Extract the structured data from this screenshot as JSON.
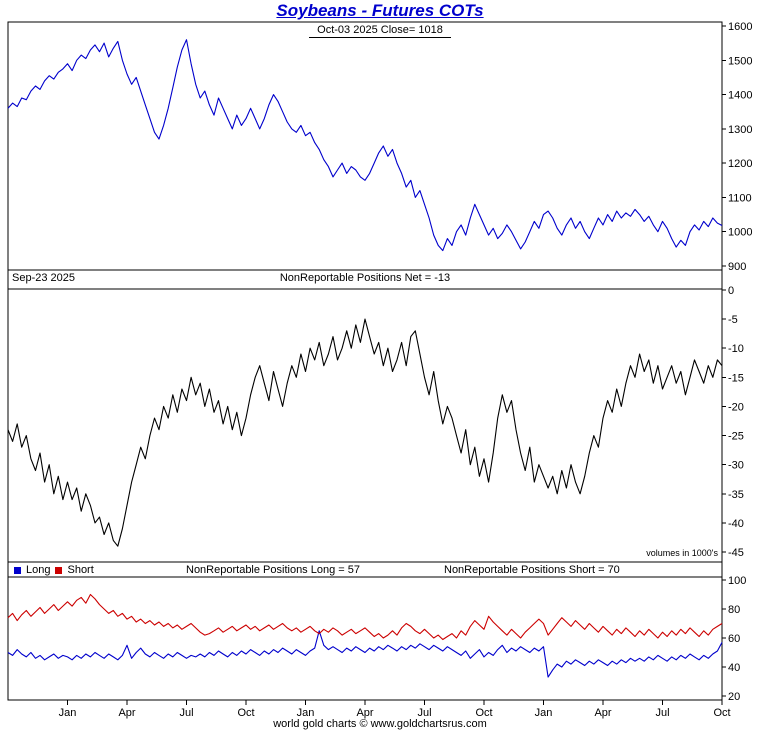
{
  "title": "Soybeans - Futures COTs",
  "footer": "world gold charts © www.goldchartsrus.com",
  "colors": {
    "title": "#0000cc",
    "price": "#0000cc",
    "net": "#000000",
    "long": "#0000cc",
    "short": "#cc0000"
  },
  "x_axis": {
    "labels": [
      "Jan",
      "Apr",
      "Jul",
      "Oct",
      "Jan",
      "Apr",
      "Jul",
      "Oct",
      "Jan",
      "Apr",
      "Jul",
      "Oct"
    ],
    "week_positions": [
      13,
      26,
      39,
      52,
      65,
      78,
      91,
      104,
      117,
      130,
      143,
      156
    ],
    "n_weeks": 156
  },
  "chart_data": [
    {
      "type": "line",
      "panel": "price",
      "annotation": "Oct-03  2025   Close= 1018",
      "ylim": [
        900,
        1600
      ],
      "yticks": [
        1600,
        1500,
        1400,
        1300,
        1200,
        1100,
        1000,
        900
      ],
      "series": [
        {
          "name": "Soybeans futures price",
          "color": "#0000cc",
          "values": [
            1360,
            1375,
            1365,
            1390,
            1385,
            1410,
            1425,
            1415,
            1440,
            1455,
            1445,
            1465,
            1475,
            1490,
            1470,
            1500,
            1515,
            1505,
            1530,
            1545,
            1525,
            1550,
            1510,
            1535,
            1555,
            1500,
            1460,
            1430,
            1450,
            1410,
            1370,
            1330,
            1290,
            1270,
            1310,
            1360,
            1420,
            1480,
            1530,
            1560,
            1490,
            1430,
            1390,
            1410,
            1370,
            1340,
            1390,
            1360,
            1330,
            1300,
            1340,
            1310,
            1330,
            1360,
            1330,
            1300,
            1330,
            1370,
            1400,
            1380,
            1350,
            1320,
            1300,
            1290,
            1310,
            1280,
            1290,
            1260,
            1240,
            1210,
            1190,
            1160,
            1180,
            1200,
            1170,
            1190,
            1180,
            1160,
            1150,
            1170,
            1200,
            1230,
            1250,
            1220,
            1240,
            1200,
            1170,
            1130,
            1150,
            1100,
            1120,
            1080,
            1040,
            990,
            960,
            945,
            980,
            960,
            1000,
            1020,
            990,
            1040,
            1080,
            1050,
            1020,
            990,
            1010,
            980,
            995,
            1020,
            1000,
            975,
            950,
            970,
            1000,
            1030,
            1010,
            1050,
            1060,
            1040,
            1010,
            990,
            1020,
            1040,
            1010,
            1030,
            1000,
            980,
            1010,
            1040,
            1020,
            1050,
            1030,
            1060,
            1040,
            1055,
            1045,
            1065,
            1050,
            1030,
            1045,
            1020,
            1000,
            1030,
            1010,
            980,
            955,
            975,
            960,
            1000,
            1020,
            1005,
            1030,
            1015,
            1040,
            1025,
            1018
          ]
        }
      ]
    },
    {
      "type": "line",
      "panel": "nonreportable-net",
      "date_label": "Sep-23  2025",
      "title": "NonReportable Positions Net = -13",
      "note": "volumes in 1000's",
      "ylim": [
        -45,
        0
      ],
      "yticks": [
        0,
        -5,
        -10,
        -15,
        -20,
        -25,
        -30,
        -35,
        -40,
        -45
      ],
      "series": [
        {
          "name": "NonReportable Net",
          "color": "#000000",
          "values": [
            -24,
            -26,
            -23,
            -27,
            -25,
            -29,
            -31,
            -28,
            -33,
            -30,
            -35,
            -32,
            -36,
            -33,
            -36,
            -34,
            -38,
            -35,
            -37,
            -40,
            -39,
            -42,
            -40,
            -43,
            -44,
            -41,
            -37,
            -33,
            -30,
            -27,
            -29,
            -25,
            -22,
            -24,
            -20,
            -22,
            -18,
            -21,
            -17,
            -19,
            -15,
            -18,
            -16,
            -20,
            -17,
            -21,
            -19,
            -23,
            -20,
            -24,
            -21,
            -25,
            -22,
            -18,
            -15,
            -13,
            -16,
            -19,
            -14,
            -17,
            -20,
            -16,
            -13,
            -15,
            -11,
            -14,
            -10,
            -12,
            -9,
            -13,
            -11,
            -8,
            -12,
            -10,
            -7,
            -10,
            -6,
            -9,
            -5,
            -8,
            -11,
            -9,
            -13,
            -10,
            -14,
            -12,
            -9,
            -13,
            -8,
            -7,
            -11,
            -15,
            -18,
            -14,
            -19,
            -23,
            -20,
            -22,
            -25,
            -28,
            -24,
            -30,
            -27,
            -32,
            -29,
            -33,
            -28,
            -22,
            -18,
            -21,
            -19,
            -24,
            -28,
            -31,
            -27,
            -33,
            -30,
            -32,
            -34,
            -32,
            -35,
            -31,
            -34,
            -30,
            -33,
            -35,
            -32,
            -28,
            -25,
            -27,
            -22,
            -19,
            -21,
            -17,
            -20,
            -16,
            -13,
            -15,
            -11,
            -14,
            -12,
            -16,
            -13,
            -17,
            -15,
            -13,
            -16,
            -14,
            -18,
            -15,
            -12,
            -14,
            -16,
            -13,
            -15,
            -12,
            -13
          ]
        }
      ]
    },
    {
      "type": "line",
      "panel": "nonreportable-long-short",
      "title_long": "NonReportable Positions Long = 57",
      "title_short": "NonReportable Positions Short = 70",
      "legend": [
        "Long",
        "Short"
      ],
      "ylim": [
        20,
        100
      ],
      "yticks": [
        100,
        80,
        60,
        40,
        20
      ],
      "series": [
        {
          "name": "Long",
          "color": "#0000cc",
          "values": [
            50,
            48,
            52,
            49,
            47,
            50,
            46,
            48,
            45,
            47,
            49,
            46,
            48,
            47,
            45,
            48,
            46,
            49,
            47,
            50,
            48,
            46,
            49,
            47,
            45,
            48,
            55,
            46,
            50,
            53,
            49,
            47,
            50,
            48,
            46,
            49,
            47,
            50,
            48,
            46,
            48,
            47,
            49,
            47,
            50,
            48,
            51,
            49,
            47,
            50,
            48,
            51,
            49,
            52,
            50,
            48,
            51,
            49,
            52,
            50,
            53,
            51,
            49,
            52,
            50,
            48,
            51,
            53,
            65,
            55,
            52,
            54,
            52,
            50,
            53,
            51,
            54,
            52,
            50,
            53,
            51,
            54,
            52,
            55,
            53,
            51,
            54,
            52,
            55,
            53,
            56,
            54,
            52,
            55,
            53,
            51,
            54,
            52,
            50,
            48,
            51,
            46,
            49,
            52,
            47,
            50,
            48,
            52,
            55,
            50,
            53,
            51,
            54,
            52,
            50,
            53,
            51,
            54,
            33,
            38,
            42,
            40,
            44,
            42,
            45,
            43,
            41,
            44,
            42,
            45,
            43,
            41,
            44,
            42,
            45,
            43,
            46,
            44,
            46,
            44,
            47,
            45,
            48,
            46,
            44,
            47,
            45,
            48,
            46,
            49,
            47,
            45,
            48,
            46,
            49,
            51,
            57
          ]
        },
        {
          "name": "Short",
          "color": "#cc0000",
          "values": [
            74,
            77,
            72,
            76,
            79,
            75,
            78,
            81,
            77,
            80,
            83,
            79,
            82,
            85,
            82,
            86,
            88,
            84,
            90,
            87,
            83,
            80,
            77,
            79,
            75,
            77,
            73,
            75,
            71,
            73,
            70,
            72,
            69,
            71,
            68,
            70,
            67,
            69,
            66,
            68,
            70,
            67,
            64,
            62,
            63,
            65,
            67,
            64,
            66,
            68,
            65,
            67,
            69,
            66,
            68,
            65,
            67,
            69,
            66,
            68,
            70,
            67,
            65,
            67,
            64,
            66,
            68,
            65,
            63,
            66,
            64,
            67,
            65,
            62,
            64,
            66,
            63,
            65,
            67,
            64,
            61,
            63,
            60,
            62,
            65,
            62,
            67,
            70,
            68,
            65,
            63,
            66,
            63,
            60,
            62,
            59,
            61,
            63,
            60,
            65,
            62,
            68,
            72,
            69,
            66,
            75,
            71,
            68,
            65,
            62,
            66,
            63,
            60,
            64,
            67,
            70,
            73,
            70,
            62,
            66,
            70,
            74,
            71,
            68,
            72,
            69,
            66,
            70,
            67,
            64,
            68,
            65,
            62,
            66,
            63,
            67,
            64,
            61,
            65,
            62,
            66,
            63,
            60,
            64,
            61,
            65,
            62,
            66,
            63,
            67,
            64,
            61,
            65,
            62,
            66,
            68,
            70
          ]
        }
      ]
    }
  ]
}
